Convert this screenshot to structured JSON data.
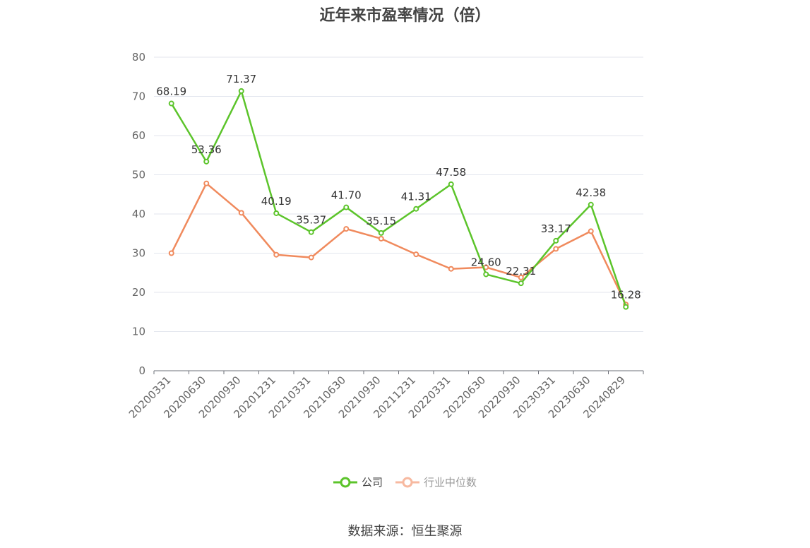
{
  "chart_data": {
    "type": "line",
    "title": "近年来市盈率情况（倍）",
    "categories": [
      "20200331",
      "20200630",
      "20200930",
      "20201231",
      "20210331",
      "20210630",
      "20210930",
      "20211231",
      "20220331",
      "20220630",
      "20220930",
      "20230331",
      "20230630",
      "20240829"
    ],
    "series": [
      {
        "name": "公司",
        "color": "#5cc42b",
        "values": [
          68.19,
          53.36,
          71.37,
          40.19,
          35.37,
          41.7,
          35.15,
          41.31,
          47.58,
          24.6,
          22.31,
          33.17,
          42.38,
          16.28
        ],
        "labels": [
          "68.19",
          "53.36",
          "71.37",
          "40.19",
          "35.37",
          "41.70",
          "35.15",
          "41.31",
          "47.58",
          "24.60",
          "22.31",
          "33.17",
          "42.38",
          "16.28"
        ]
      },
      {
        "name": "行业中位数",
        "color": "#f08a5d",
        "values": [
          30.0,
          47.8,
          40.3,
          29.6,
          28.9,
          36.2,
          33.7,
          29.7,
          26.0,
          26.4,
          23.8,
          31.1,
          35.6,
          16.9
        ]
      }
    ],
    "ylim": [
      0,
      80
    ],
    "yticks": [
      0,
      10,
      20,
      30,
      40,
      50,
      60,
      70,
      80
    ],
    "grid": true,
    "legend_position": "bottom"
  },
  "legend": {
    "company": "公司",
    "industry": "行业中位数"
  },
  "source": "数据来源：恒生聚源"
}
